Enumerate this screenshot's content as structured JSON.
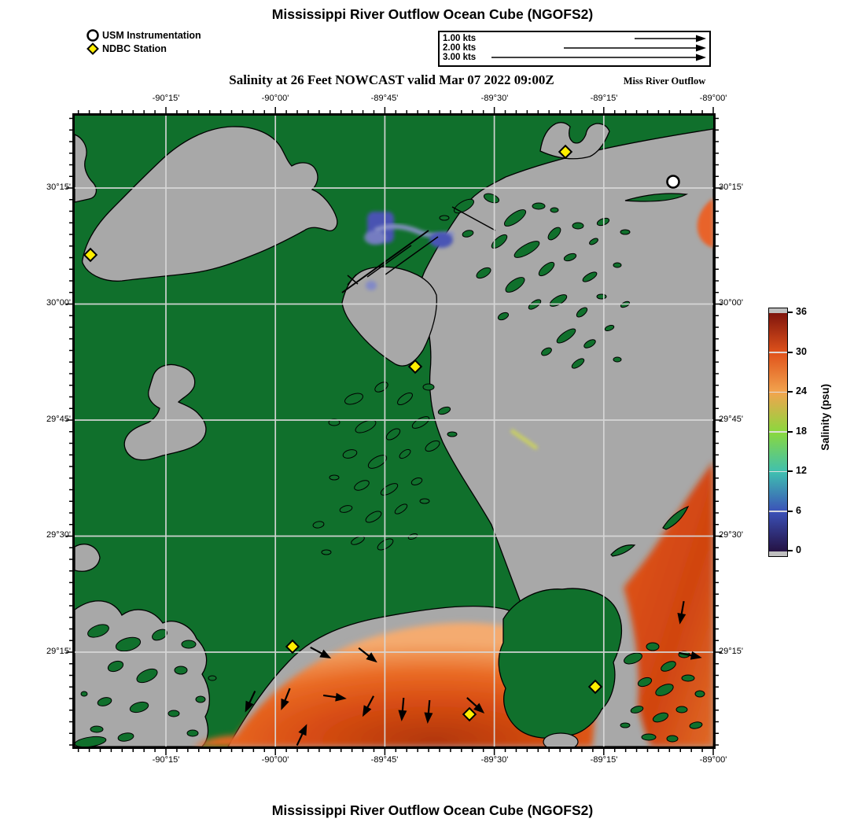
{
  "header": {
    "title": "Mississippi River Outflow Ocean Cube (NGOFS2)",
    "subtitle": "Salinity at 26 Feet NOWCAST valid Mar 07 2022 09:00Z",
    "subtitle_right": "Miss River Outflow",
    "bottom_title": "Mississippi River Outflow Ocean Cube (NGOFS2)"
  },
  "legend": {
    "usm_label": "USM Instrumentation",
    "ndbc_label": "NDBC Station"
  },
  "velocity_scale": {
    "rows": [
      "1.00 kts",
      "2.00 kts",
      "3.00 kts"
    ]
  },
  "axes": {
    "lon_labels": [
      "-90°15'",
      "-90°00'",
      "-89°45'",
      "-89°30'",
      "-89°15'",
      "-89°00'"
    ],
    "lat_labels": [
      "30°15'",
      "30°00'",
      "29°45'",
      "29°30'",
      "29°15'"
    ]
  },
  "colorbar": {
    "label": "Salinity (psu)",
    "tick_labels": [
      "36",
      "30",
      "24",
      "18",
      "12",
      "6",
      "0"
    ],
    "min": 0,
    "max": 36
  },
  "map": {
    "field_green": "#10702c",
    "masked_gray": "#a8a8a8",
    "low_salinity_blue": "#4a53b2",
    "high_salinity_orange": "#d94c12",
    "ndbc_station_count": 6,
    "usm_station_count": 1,
    "current_arrow_count": 12
  }
}
